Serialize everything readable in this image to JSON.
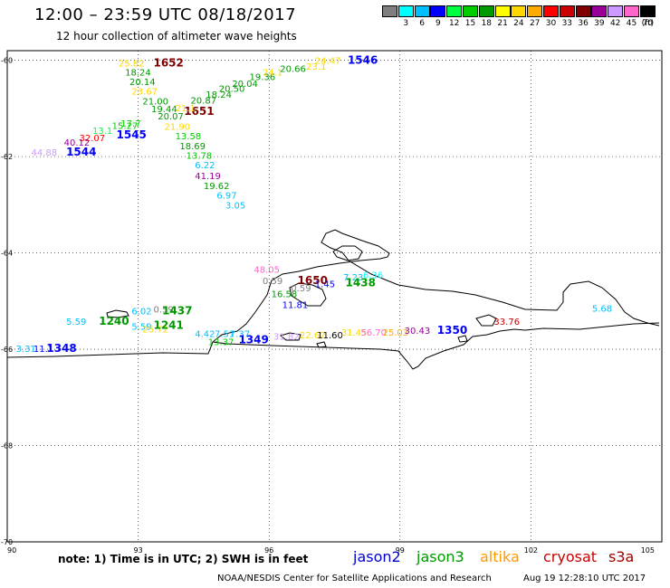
{
  "title": "12:00 – 23:59 UTC 08/18/2017",
  "subtitle": "12 hour collection of altimeter wave heights",
  "colorbar": {
    "unit": "(ft)",
    "swatches": [
      {
        "label": "",
        "color": "#7f7f7f"
      },
      {
        "label": "3",
        "color": "#00ffff"
      },
      {
        "label": "6",
        "color": "#00bfff"
      },
      {
        "label": "9",
        "color": "#0000ff"
      },
      {
        "label": "12",
        "color": "#00ff40"
      },
      {
        "label": "15",
        "color": "#00cc00"
      },
      {
        "label": "18",
        "color": "#009900"
      },
      {
        "label": "21",
        "color": "#ffff00"
      },
      {
        "label": "24",
        "color": "#ffd700"
      },
      {
        "label": "27",
        "color": "#ffaa00"
      },
      {
        "label": "30",
        "color": "#ff0000"
      },
      {
        "label": "33",
        "color": "#cc0000"
      },
      {
        "label": "36",
        "color": "#800000"
      },
      {
        "label": "39",
        "color": "#990099"
      },
      {
        "label": "42",
        "color": "#cc99ff"
      },
      {
        "label": "45",
        "color": "#ff66cc"
      },
      {
        "label": "70",
        "color": "#000000"
      }
    ]
  },
  "map": {
    "lon_range": [
      90,
      105
    ],
    "lat_range": [
      -70,
      -59.8
    ],
    "lon_ticks": [
      "90",
      "93",
      "96",
      "99",
      "102",
      "105"
    ],
    "lat_ticks": [
      "-60",
      "-62",
      "-64",
      "-66",
      "-68",
      "-70"
    ],
    "observations": [
      {
        "text": "25.82",
        "lon": 92.55,
        "lat": -60.05,
        "color": "#ffd700"
      },
      {
        "text": "1652",
        "lon": 93.35,
        "lat": -60.05,
        "color": "#800000",
        "bold": true
      },
      {
        "text": "18.24",
        "lon": 92.7,
        "lat": -60.24,
        "color": "#009900"
      },
      {
        "text": "20.14",
        "lon": 92.8,
        "lat": -60.44,
        "color": "#009900"
      },
      {
        "text": "23.67",
        "lon": 92.85,
        "lat": -60.64,
        "color": "#ffd700"
      },
      {
        "text": "21.00",
        "lon": 93.1,
        "lat": -60.84,
        "color": "#009900"
      },
      {
        "text": "19.44",
        "lon": 93.3,
        "lat": -61.0,
        "color": "#009900"
      },
      {
        "text": "20.07",
        "lon": 93.45,
        "lat": -61.15,
        "color": "#009900"
      },
      {
        "text": "21.90",
        "lon": 93.6,
        "lat": -61.37,
        "color": "#ffd700"
      },
      {
        "text": "13.58",
        "lon": 93.85,
        "lat": -61.57,
        "color": "#00cc00"
      },
      {
        "text": "18.69",
        "lon": 93.95,
        "lat": -61.77,
        "color": "#009900"
      },
      {
        "text": "13.78",
        "lon": 94.1,
        "lat": -61.97,
        "color": "#00cc00"
      },
      {
        "text": "6.22",
        "lon": 94.3,
        "lat": -62.17,
        "color": "#00bfff"
      },
      {
        "text": "41.19",
        "lon": 94.3,
        "lat": -62.39,
        "color": "#990099"
      },
      {
        "text": "19.62",
        "lon": 94.5,
        "lat": -62.6,
        "color": "#009900"
      },
      {
        "text": "6.97",
        "lon": 94.8,
        "lat": -62.8,
        "color": "#00bfff"
      },
      {
        "text": "3.05",
        "lon": 95.0,
        "lat": -63.0,
        "color": "#00bfff"
      },
      {
        "text": "1651",
        "lon": 94.05,
        "lat": -61.06,
        "color": "#800000",
        "bold": true
      },
      {
        "text": "21.1",
        "lon": 93.85,
        "lat": -60.98,
        "color": "#ffd700"
      },
      {
        "text": "20.87",
        "lon": 94.2,
        "lat": -60.82,
        "color": "#009900"
      },
      {
        "text": "18.24",
        "lon": 94.55,
        "lat": -60.7,
        "color": "#009900"
      },
      {
        "text": "20.50",
        "lon": 94.85,
        "lat": -60.58,
        "color": "#009900"
      },
      {
        "text": "20.04",
        "lon": 95.15,
        "lat": -60.48,
        "color": "#009900"
      },
      {
        "text": "19.36",
        "lon": 95.55,
        "lat": -60.34,
        "color": "#009900"
      },
      {
        "text": "24.1",
        "lon": 95.85,
        "lat": -60.24,
        "color": "#ffd700"
      },
      {
        "text": "20.66",
        "lon": 96.25,
        "lat": -60.17,
        "color": "#009900"
      },
      {
        "text": "23.1",
        "lon": 96.85,
        "lat": -60.12,
        "color": "#ffd700"
      },
      {
        "text": "24.47",
        "lon": 97.05,
        "lat": -60.0,
        "color": "#ffd700"
      },
      {
        "text": "1546",
        "lon": 97.8,
        "lat": -60.0,
        "color": "#0000ff",
        "bold": true
      },
      {
        "text": "17.7",
        "lon": 92.6,
        "lat": -61.3,
        "color": "#00cc00"
      },
      {
        "text": "15.27",
        "lon": 92.4,
        "lat": -61.35,
        "color": "#00cc00"
      },
      {
        "text": "13.1",
        "lon": 91.95,
        "lat": -61.45,
        "color": "#00ff40"
      },
      {
        "text": "1545",
        "lon": 92.5,
        "lat": -61.55,
        "color": "#0000ff",
        "bold": true
      },
      {
        "text": "32.07",
        "lon": 91.65,
        "lat": -61.6,
        "color": "#ff0000"
      },
      {
        "text": "40.12",
        "lon": 91.3,
        "lat": -61.7,
        "color": "#990099"
      },
      {
        "text": "44.88",
        "lon": 90.55,
        "lat": -61.9,
        "color": "#cc99ff"
      },
      {
        "text": "1544",
        "lon": 91.35,
        "lat": -61.9,
        "color": "#0000ff",
        "bold": true
      },
      {
        "text": "48.05",
        "lon": 95.65,
        "lat": -64.34,
        "color": "#ff66cc"
      },
      {
        "text": "0.59",
        "lon": 95.85,
        "lat": -64.57,
        "color": "#7f7f7f"
      },
      {
        "text": "1650",
        "lon": 96.65,
        "lat": -64.57,
        "color": "#800000",
        "bold": true
      },
      {
        "text": "0.59",
        "lon": 96.5,
        "lat": -64.72,
        "color": "#7f7f7f"
      },
      {
        "text": "1.45",
        "lon": 97.05,
        "lat": -64.64,
        "color": "#0000ff"
      },
      {
        "text": "16.58",
        "lon": 96.05,
        "lat": -64.84,
        "color": "#009900"
      },
      {
        "text": "11.81",
        "lon": 96.3,
        "lat": -65.07,
        "color": "#0000ff"
      },
      {
        "text": "7.23",
        "lon": 97.7,
        "lat": -64.5,
        "color": "#00bfff"
      },
      {
        "text": "6.36",
        "lon": 98.15,
        "lat": -64.45,
        "color": "#00ffff"
      },
      {
        "text": "1438",
        "lon": 97.75,
        "lat": -64.62,
        "color": "#009900",
        "bold": true
      },
      {
        "text": "6.02",
        "lon": 92.85,
        "lat": -65.2,
        "color": "#00bfff"
      },
      {
        "text": "0.59",
        "lon": 93.35,
        "lat": -65.16,
        "color": "#7f7f7f"
      },
      {
        "text": "1437",
        "lon": 93.55,
        "lat": -65.2,
        "color": "#009900",
        "bold": true
      },
      {
        "text": "5.59",
        "lon": 91.35,
        "lat": -65.42,
        "color": "#00bfff"
      },
      {
        "text": "1240",
        "lon": 92.1,
        "lat": -65.42,
        "color": "#009900",
        "bold": true
      },
      {
        "text": "5.59",
        "lon": 92.85,
        "lat": -65.52,
        "color": "#00bfff"
      },
      {
        "text": "25.72",
        "lon": 93.1,
        "lat": -65.58,
        "color": "#ffd700"
      },
      {
        "text": "1241",
        "lon": 93.35,
        "lat": -65.5,
        "color": "#009900",
        "bold": true
      },
      {
        "text": "4.42",
        "lon": 94.3,
        "lat": -65.67,
        "color": "#00bfff"
      },
      {
        "text": "7.51",
        "lon": 94.75,
        "lat": -65.67,
        "color": "#00bfff"
      },
      {
        "text": "7.37",
        "lon": 95.1,
        "lat": -65.67,
        "color": "#00bfff"
      },
      {
        "text": "13.37",
        "lon": 94.6,
        "lat": -65.84,
        "color": "#00cc00"
      },
      {
        "text": "1349",
        "lon": 95.3,
        "lat": -65.8,
        "color": "#0000ff",
        "bold": true
      },
      {
        "text": "31.82",
        "lon": 96.1,
        "lat": -65.73,
        "color": "#cc99ff"
      },
      {
        "text": "22.62",
        "lon": 96.7,
        "lat": -65.7,
        "color": "#ffd700"
      },
      {
        "text": "11.60",
        "lon": 97.1,
        "lat": -65.7,
        "color": "#000000"
      },
      {
        "text": "31.45",
        "lon": 97.65,
        "lat": -65.64,
        "color": "#ffd700"
      },
      {
        "text": "56.70",
        "lon": 98.1,
        "lat": -65.64,
        "color": "#ff66cc"
      },
      {
        "text": "25.03",
        "lon": 98.6,
        "lat": -65.64,
        "color": "#ffaa00"
      },
      {
        "text": "30.43",
        "lon": 99.1,
        "lat": -65.6,
        "color": "#990099"
      },
      {
        "text": "1350",
        "lon": 99.85,
        "lat": -65.6,
        "color": "#0000ff",
        "bold": true
      },
      {
        "text": "33.76",
        "lon": 101.15,
        "lat": -65.42,
        "color": "#cc0000"
      },
      {
        "text": "5.68",
        "lon": 103.4,
        "lat": -65.14,
        "color": "#00bfff"
      },
      {
        "text": "3.31",
        "lon": 90.2,
        "lat": -65.98,
        "color": "#00bfff"
      },
      {
        "text": "11.1",
        "lon": 90.6,
        "lat": -65.98,
        "color": "#0000ff"
      },
      {
        "text": "1348",
        "lon": 90.9,
        "lat": -65.98,
        "color": "#0000ff",
        "bold": true
      }
    ]
  },
  "note": "note:  1) Time is in UTC;  2) SWH is in feet",
  "legend": [
    {
      "label": "jason2",
      "color": "#0000cc"
    },
    {
      "label": "jason3",
      "color": "#009900"
    },
    {
      "label": "altika",
      "color": "#ff9900"
    },
    {
      "label": "cryosat",
      "color": "#cc0000"
    },
    {
      "label": "s3a",
      "color": "#990000"
    }
  ],
  "credit": "NOAA/NESDIS Center for Satellite Applications and Research",
  "timestamp": "Aug 19 12:28:10 UTC 2017"
}
